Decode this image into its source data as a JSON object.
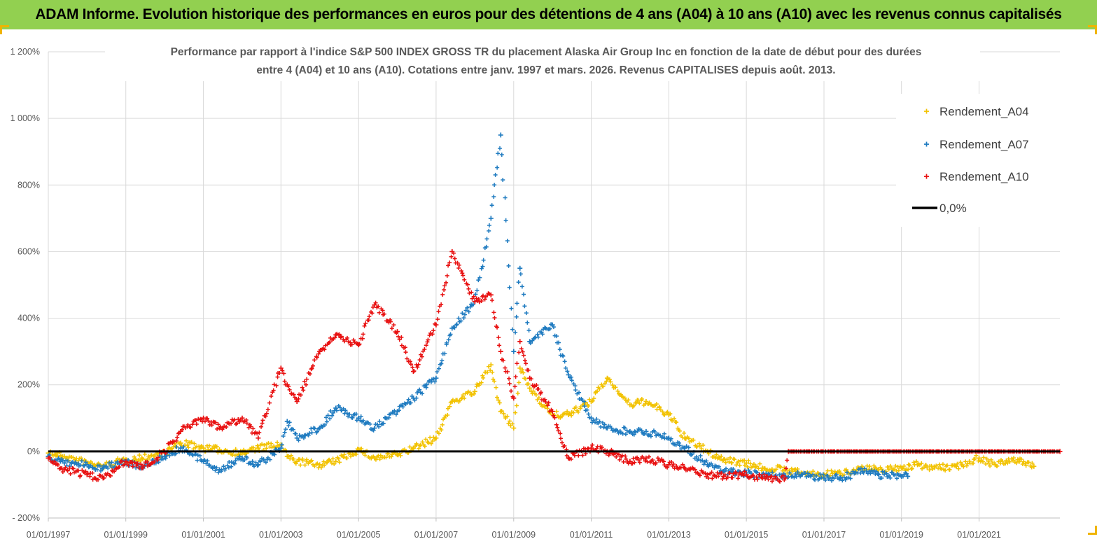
{
  "header": {
    "title": "ADAM Informe. Evolution historique des performances en euros pour des détentions de 4 ans (A04) à 10 ans (A10) avec les revenus connus capitalisés"
  },
  "chart_data": {
    "type": "scatter",
    "title_line1": "Performance par rapport à l'indice S&P 500 INDEX GROSS TR  du placement Alaska Air Group Inc en fonction de la date de début pour des durées",
    "title_line2": "entre 4 (A04) et 10 ans (A10). Cotations entre janv. 1997 et mars. 2026. Revenus CAPITALISES depuis août. 2013.",
    "xlabel": "",
    "ylabel": "",
    "x_range": [
      "1997-01-01",
      "2023-02-01"
    ],
    "y_range": [
      -200,
      1200
    ],
    "x_tick_labels": [
      "01/01/1997",
      "01/01/1999",
      "01/01/2001",
      "01/01/2003",
      "01/01/2005",
      "01/01/2007",
      "01/01/2009",
      "01/01/2011",
      "01/01/2013",
      "01/01/2015",
      "01/01/2017",
      "01/01/2019",
      "01/01/2021"
    ],
    "y_tick_labels": [
      "- 200%",
      "0%",
      "200%",
      "400%",
      "600%",
      "800%",
      "1 000%",
      "1 200%"
    ],
    "grid": true,
    "legend_position": "top-right",
    "series": [
      {
        "name": "Rendement_A04",
        "color": "#f2c200",
        "marker": "+",
        "points": [
          [
            "1997-01-01",
            -5
          ],
          [
            "1997-06-01",
            -15
          ],
          [
            "1998-01-01",
            -35
          ],
          [
            "1998-06-01",
            -45
          ],
          [
            "1999-01-01",
            -25
          ],
          [
            "1999-06-01",
            -20
          ],
          [
            "2000-01-01",
            -5
          ],
          [
            "2000-06-01",
            25
          ],
          [
            "2001-01-01",
            10
          ],
          [
            "2001-06-01",
            5
          ],
          [
            "2002-01-01",
            -5
          ],
          [
            "2002-06-01",
            10
          ],
          [
            "2003-01-01",
            20
          ],
          [
            "2003-03-01",
            -15
          ],
          [
            "2003-06-01",
            -30
          ],
          [
            "2004-01-01",
            -40
          ],
          [
            "2004-06-01",
            -30
          ],
          [
            "2005-01-01",
            5
          ],
          [
            "2005-06-01",
            -20
          ],
          [
            "2006-01-01",
            -10
          ],
          [
            "2006-06-01",
            10
          ],
          [
            "2007-01-01",
            40
          ],
          [
            "2007-06-01",
            150
          ],
          [
            "2008-01-01",
            180
          ],
          [
            "2008-06-01",
            260
          ],
          [
            "2008-09-01",
            120
          ],
          [
            "2009-01-01",
            70
          ],
          [
            "2009-03-01",
            250
          ],
          [
            "2009-06-01",
            190
          ],
          [
            "2010-01-01",
            110
          ],
          [
            "2010-06-01",
            110
          ],
          [
            "2011-01-01",
            150
          ],
          [
            "2011-06-01",
            220
          ],
          [
            "2012-01-01",
            140
          ],
          [
            "2012-06-01",
            150
          ],
          [
            "2013-01-01",
            110
          ],
          [
            "2013-06-01",
            40
          ],
          [
            "2014-01-01",
            0
          ],
          [
            "2014-06-01",
            -25
          ],
          [
            "2015-01-01",
            -35
          ],
          [
            "2015-06-01",
            -50
          ],
          [
            "2016-01-01",
            -55
          ],
          [
            "2016-06-01",
            -65
          ],
          [
            "2017-01-01",
            -70
          ],
          [
            "2017-06-01",
            -65
          ],
          [
            "2018-01-01",
            -50
          ],
          [
            "2018-06-01",
            -55
          ],
          [
            "2019-01-01",
            -50
          ],
          [
            "2019-06-01",
            -40
          ],
          [
            "2020-01-01",
            -50
          ],
          [
            "2020-06-01",
            -45
          ],
          [
            "2021-01-01",
            -20
          ],
          [
            "2021-06-01",
            -40
          ],
          [
            "2022-01-01",
            -25
          ],
          [
            "2022-06-01",
            -45
          ]
        ]
      },
      {
        "name": "Rendement_A07",
        "color": "#1f7bc0",
        "marker": "+",
        "points": [
          [
            "1997-01-01",
            -15
          ],
          [
            "1997-06-01",
            -35
          ],
          [
            "1998-01-01",
            -40
          ],
          [
            "1998-06-01",
            -50
          ],
          [
            "1999-01-01",
            -30
          ],
          [
            "1999-06-01",
            -45
          ],
          [
            "2000-01-01",
            -15
          ],
          [
            "2000-06-01",
            10
          ],
          [
            "2001-01-01",
            -30
          ],
          [
            "2001-06-01",
            -55
          ],
          [
            "2002-01-01",
            -20
          ],
          [
            "2002-06-01",
            -40
          ],
          [
            "2003-01-01",
            10
          ],
          [
            "2003-03-01",
            90
          ],
          [
            "2003-06-01",
            40
          ],
          [
            "2004-01-01",
            70
          ],
          [
            "2004-06-01",
            130
          ],
          [
            "2005-01-01",
            100
          ],
          [
            "2005-06-01",
            70
          ],
          [
            "2006-01-01",
            120
          ],
          [
            "2006-06-01",
            160
          ],
          [
            "2007-01-01",
            220
          ],
          [
            "2007-06-01",
            370
          ],
          [
            "2008-01-01",
            450
          ],
          [
            "2008-06-01",
            700
          ],
          [
            "2008-09-01",
            950
          ],
          [
            "2009-01-01",
            300
          ],
          [
            "2009-03-01",
            550
          ],
          [
            "2009-06-01",
            330
          ],
          [
            "2010-01-01",
            380
          ],
          [
            "2010-06-01",
            230
          ],
          [
            "2011-01-01",
            100
          ],
          [
            "2011-06-01",
            70
          ],
          [
            "2012-01-01",
            60
          ],
          [
            "2012-06-01",
            60
          ],
          [
            "2013-01-01",
            40
          ],
          [
            "2013-06-01",
            10
          ],
          [
            "2014-01-01",
            -40
          ],
          [
            "2014-06-01",
            -60
          ],
          [
            "2015-01-01",
            -65
          ],
          [
            "2015-06-01",
            -70
          ],
          [
            "2016-01-01",
            -75
          ],
          [
            "2016-06-01",
            -70
          ],
          [
            "2017-01-01",
            -80
          ],
          [
            "2017-06-01",
            -80
          ],
          [
            "2018-01-01",
            -60
          ],
          [
            "2018-06-01",
            -70
          ],
          [
            "2019-01-01",
            -75
          ],
          [
            "2019-03-01",
            -75
          ]
        ]
      },
      {
        "name": "Rendement_A10",
        "color": "#e81010",
        "marker": "+",
        "points": [
          [
            "1997-01-01",
            -20
          ],
          [
            "1997-06-01",
            -55
          ],
          [
            "1998-01-01",
            -70
          ],
          [
            "1998-06-01",
            -80
          ],
          [
            "1999-01-01",
            -30
          ],
          [
            "1999-06-01",
            -50
          ],
          [
            "2000-01-01",
            0
          ],
          [
            "2000-06-01",
            60
          ],
          [
            "2001-01-01",
            100
          ],
          [
            "2001-06-01",
            70
          ],
          [
            "2002-01-01",
            100
          ],
          [
            "2002-06-01",
            40
          ],
          [
            "2003-01-01",
            250
          ],
          [
            "2003-03-01",
            200
          ],
          [
            "2003-06-01",
            150
          ],
          [
            "2004-01-01",
            300
          ],
          [
            "2004-06-01",
            350
          ],
          [
            "2005-01-01",
            320
          ],
          [
            "2005-06-01",
            440
          ],
          [
            "2006-01-01",
            360
          ],
          [
            "2006-06-01",
            240
          ],
          [
            "2007-01-01",
            380
          ],
          [
            "2007-06-01",
            600
          ],
          [
            "2008-01-01",
            450
          ],
          [
            "2008-06-01",
            470
          ],
          [
            "2008-09-01",
            300
          ],
          [
            "2009-01-01",
            160
          ],
          [
            "2009-03-01",
            330
          ],
          [
            "2009-06-01",
            220
          ],
          [
            "2010-01-01",
            120
          ],
          [
            "2010-06-01",
            -20
          ],
          [
            "2011-01-01",
            10
          ],
          [
            "2011-06-01",
            0
          ],
          [
            "2012-01-01",
            -30
          ],
          [
            "2012-06-01",
            -20
          ],
          [
            "2013-01-01",
            -40
          ],
          [
            "2013-06-01",
            -50
          ],
          [
            "2014-01-01",
            -70
          ],
          [
            "2014-06-01",
            -75
          ],
          [
            "2015-01-01",
            -70
          ],
          [
            "2015-06-01",
            -80
          ],
          [
            "2016-01-01",
            -80
          ],
          [
            "2016-02-01",
            0
          ],
          [
            "2023-02-01",
            0
          ]
        ]
      },
      {
        "name": "0,0%",
        "color": "#000000",
        "marker": "line",
        "points": [
          [
            "1997-01-01",
            0
          ],
          [
            "2023-02-01",
            0
          ]
        ]
      }
    ]
  }
}
